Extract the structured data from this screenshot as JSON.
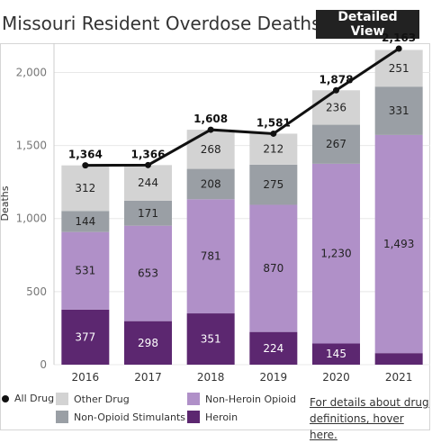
{
  "header": {
    "title": "Missouri Resident Overdose Deaths",
    "detailed_view_label": "Detailed View"
  },
  "legend": {
    "items": [
      {
        "label": "All Drug",
        "color": "#111111"
      },
      {
        "label": "Other Drug",
        "color": "#d3d3d3"
      },
      {
        "label": "Non-Heroin Opioid",
        "color": "#b090c8"
      },
      {
        "label": "Non-Opioid Stimulants",
        "color": "#9a9fa5"
      },
      {
        "label": "Heroin",
        "color": "#5c2770"
      }
    ],
    "hover_link_line1": "For details about drug",
    "hover_link_line2": "definitions, hover here."
  },
  "chart_data": {
    "type": "bar",
    "stacked": true,
    "categories": [
      "2016",
      "2017",
      "2018",
      "2019",
      "2020",
      "2021"
    ],
    "ylabel": "Deaths",
    "ylim": [
      0,
      2200
    ],
    "yticks": [
      0,
      500,
      1000,
      1500,
      2000
    ],
    "ytick_labels": [
      "0",
      "500",
      "1,000",
      "1,500",
      "2,000"
    ],
    "series": [
      {
        "name": "Heroin",
        "color": "#5c2770",
        "values": [
          377,
          298,
          351,
          224,
          145,
          79
        ],
        "labels": [
          "377",
          "298",
          "351",
          "224",
          "145",
          ""
        ]
      },
      {
        "name": "Non-Heroin Opioid",
        "color": "#b090c8",
        "values": [
          531,
          653,
          781,
          870,
          1230,
          1493
        ],
        "labels": [
          "531",
          "653",
          "781",
          "870",
          "1,230",
          "1,493"
        ]
      },
      {
        "name": "Non-Opioid Stimulants",
        "color": "#9a9fa5",
        "values": [
          144,
          171,
          208,
          275,
          267,
          331
        ],
        "labels": [
          "144",
          "171",
          "208",
          "275",
          "267",
          "331"
        ]
      },
      {
        "name": "Other Drug",
        "color": "#d3d3d3",
        "values": [
          312,
          244,
          268,
          212,
          236,
          251
        ],
        "labels": [
          "312",
          "244",
          "268",
          "212",
          "236",
          "251"
        ]
      }
    ],
    "line": {
      "name": "All Drug",
      "color": "#111111",
      "values": [
        1364,
        1366,
        1608,
        1581,
        1878,
        2163
      ],
      "labels": [
        "1,364",
        "1,366",
        "1,608",
        "1,581",
        "1,878",
        "2,163"
      ]
    }
  }
}
